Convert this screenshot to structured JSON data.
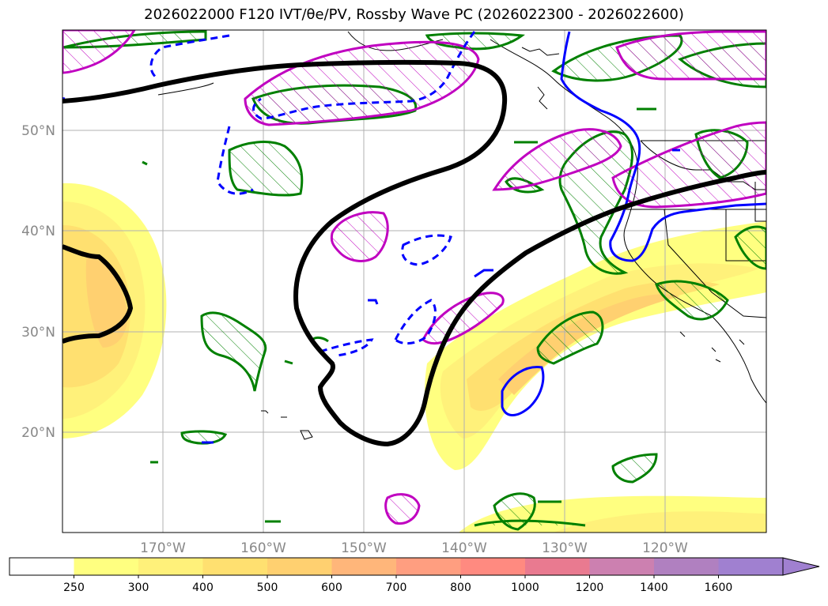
{
  "title": "2026022000 F120 IVT/θe/PV, Rossby Wave PC (2026022300 - 2026022600)",
  "lat_labels": [
    "50°N",
    "40°N",
    "30°N",
    "20°N"
  ],
  "lon_labels": [
    "170°W",
    "160°W",
    "150°W",
    "140°W",
    "130°W",
    "120°W"
  ],
  "colorbar": {
    "ticks": [
      "250",
      "300",
      "400",
      "500",
      "600",
      "700",
      "800",
      "1000",
      "1200",
      "1400",
      "1600"
    ],
    "colors": [
      "#ffffff",
      "#ffff80",
      "#fff17a",
      "#ffe070",
      "#ffd070",
      "#ffb67a",
      "#ff9e80",
      "#ff8a80",
      "#e97a90",
      "#cc80b0",
      "#b080c0",
      "#a080d0"
    ],
    "extend": "max"
  },
  "colors": {
    "contour_black": "#000000",
    "pv_magenta": "#c000c0",
    "theta_green": "#008000",
    "rossby_blue": "#0000ff",
    "grid": "#b0b0b0"
  }
}
